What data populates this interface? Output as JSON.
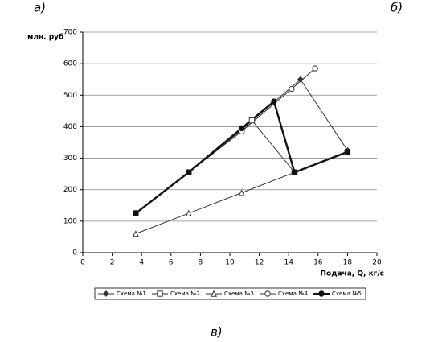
{
  "panel_labels": [
    "а)",
    "б)",
    "в)"
  ],
  "chart_data": {
    "type": "line",
    "y_label": "млн. руб",
    "x_label": "Подача, Q, кг/с",
    "xlim": [
      0,
      20
    ],
    "xticks": [
      0,
      2,
      4,
      6,
      8,
      10,
      12,
      14,
      16,
      18,
      20
    ],
    "ylim": [
      0,
      700
    ],
    "yticks": [
      0,
      100,
      200,
      300,
      400,
      500,
      600,
      700
    ],
    "grid": true,
    "series": [
      {
        "name": "Схема №1",
        "color": "#333333",
        "marker": "diamond",
        "x": [
          3.6,
          7.2,
          10.8,
          14.8,
          18
        ],
        "values": [
          125,
          255,
          390,
          550,
          325
        ]
      },
      {
        "name": "Схема №2",
        "color": "#333333",
        "marker": "square",
        "x": [
          3.6,
          7.2,
          10.8,
          11.5,
          14.4,
          18
        ],
        "values": [
          125,
          255,
          390,
          420,
          255,
          320
        ]
      },
      {
        "name": "Схема №3",
        "color": "#333333",
        "marker": "triangle",
        "x": [
          3.6,
          7.2,
          10.8,
          14.4,
          18
        ],
        "values": [
          60,
          125,
          190,
          255,
          320
        ]
      },
      {
        "name": "Схема №4",
        "color": "#333333",
        "marker": "circle-open",
        "x": [
          3.6,
          7.2,
          10.8,
          14.2,
          15.8
        ],
        "values": [
          125,
          255,
          385,
          520,
          585
        ]
      },
      {
        "name": "Схема №5",
        "color": "#111111",
        "marker": "circle",
        "x": [
          3.6,
          7.2,
          10.8,
          13,
          14.4,
          18
        ],
        "values": [
          125,
          255,
          395,
          480,
          255,
          320
        ]
      }
    ]
  }
}
